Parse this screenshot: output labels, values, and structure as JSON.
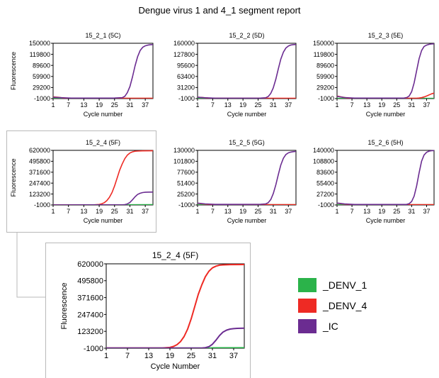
{
  "main_title": "Dengue virus 1 and 4_1 segment report",
  "colors": {
    "DENV_1": "#2bb34a",
    "DENV_4": "#ee2a24",
    "IC": "#6b2c91"
  },
  "legend": [
    {
      "key": "DENV_1",
      "label": "_DENV_1",
      "color": "#2bb34a"
    },
    {
      "key": "DENV_4",
      "label": "_DENV_4",
      "color": "#ee2a24"
    },
    {
      "key": "IC",
      "label": "_IC",
      "color": "#6b2c91"
    }
  ],
  "chart_data": [
    {
      "type": "line",
      "title": "15_2_1 (5C)",
      "xlabel": "Cycle number",
      "ylabel": "Fluorescence",
      "xlim": [
        1,
        40
      ],
      "ylim": [
        -1000,
        150000
      ],
      "x_ticks": [
        "1",
        "7",
        "13",
        "19",
        "25",
        "31",
        "37"
      ],
      "y_ticks": [
        "150000",
        "119800",
        "89600",
        "59900",
        "29200",
        "-1000"
      ],
      "series": [
        {
          "name": "_DENV_1",
          "x": [
            1,
            40
          ],
          "y": [
            -500,
            -500
          ]
        },
        {
          "name": "_DENV_4",
          "x": [
            1,
            3,
            6,
            40
          ],
          "y": [
            3500,
            2500,
            -200,
            -200
          ]
        },
        {
          "name": "_IC",
          "x": [
            1,
            4,
            8,
            25,
            28,
            29,
            30,
            31,
            32,
            33,
            34,
            35,
            36,
            37,
            38,
            39,
            40
          ],
          "y": [
            2500,
            1500,
            300,
            500,
            1500,
            5000,
            15000,
            32000,
            58000,
            88000,
            113000,
            130000,
            139000,
            143000,
            145000,
            146000,
            146500
          ]
        }
      ]
    },
    {
      "type": "line",
      "title": "15_2_2 (5D)",
      "xlabel": "Cycle number",
      "ylabel": "",
      "xlim": [
        1,
        40
      ],
      "ylim": [
        -1000,
        160000
      ],
      "x_ticks": [
        "1",
        "7",
        "13",
        "19",
        "25",
        "31",
        "37"
      ],
      "y_ticks": [
        "160000",
        "127800",
        "95600",
        "63400",
        "31200",
        "-1000"
      ],
      "series": [
        {
          "name": "_DENV_1",
          "x": [
            1,
            40
          ],
          "y": [
            -500,
            -500
          ]
        },
        {
          "name": "_DENV_4",
          "x": [
            1,
            3,
            6,
            40
          ],
          "y": [
            3000,
            2000,
            -200,
            -200
          ]
        },
        {
          "name": "_IC",
          "x": [
            1,
            4,
            8,
            26,
            28,
            29,
            30,
            31,
            32,
            33,
            34,
            35,
            36,
            37,
            38,
            39,
            40
          ],
          "y": [
            3000,
            1500,
            300,
            500,
            1500,
            5000,
            14000,
            30000,
            55000,
            86000,
            114000,
            134000,
            146000,
            152000,
            155000,
            156000,
            156500
          ]
        }
      ]
    },
    {
      "type": "line",
      "title": "15_2_3 (5E)",
      "xlabel": "Cycle number",
      "ylabel": "",
      "xlim": [
        1,
        40
      ],
      "ylim": [
        -1000,
        150000
      ],
      "x_ticks": [
        "1",
        "7",
        "13",
        "19",
        "25",
        "31",
        "37"
      ],
      "y_ticks": [
        "150000",
        "119800",
        "89600",
        "59900",
        "29200",
        "-1000"
      ],
      "series": [
        {
          "name": "_DENV_1",
          "x": [
            1,
            40
          ],
          "y": [
            -500,
            -500
          ]
        },
        {
          "name": "_DENV_4",
          "x": [
            1,
            3,
            6,
            33,
            34,
            35,
            36,
            37,
            38,
            39,
            40
          ],
          "y": [
            6000,
            3000,
            -200,
            -200,
            500,
            1500,
            3500,
            6000,
            9000,
            12000,
            14000
          ]
        },
        {
          "name": "_IC",
          "x": [
            1,
            4,
            8,
            28,
            29,
            30,
            31,
            32,
            33,
            34,
            35,
            36,
            37,
            38,
            39,
            40
          ],
          "y": [
            5000,
            2000,
            300,
            500,
            2000,
            6000,
            18000,
            42000,
            75000,
            108000,
            130000,
            141000,
            145000,
            147000,
            148000,
            148500
          ]
        }
      ]
    },
    {
      "type": "line",
      "title": "15_2_4 (5F)",
      "xlabel": "Cycle number",
      "ylabel": "Fluorescence",
      "xlim": [
        1,
        40
      ],
      "ylim": [
        -1000,
        620000
      ],
      "x_ticks": [
        "1",
        "7",
        "13",
        "19",
        "25",
        "31",
        "37"
      ],
      "y_ticks": [
        "620000",
        "495800",
        "371600",
        "247400",
        "123200",
        "-1000"
      ],
      "series": [
        {
          "name": "_DENV_1",
          "x": [
            1,
            30,
            31,
            40
          ],
          "y": [
            -500,
            -500,
            1500,
            2000
          ]
        },
        {
          "name": "_DENV_4",
          "x": [
            1,
            17,
            19,
            20,
            21,
            22,
            23,
            24,
            25,
            26,
            27,
            28,
            29,
            30,
            31,
            32,
            33,
            34,
            36,
            40
          ],
          "y": [
            0,
            1000,
            5000,
            12000,
            25000,
            48000,
            85000,
            140000,
            215000,
            305000,
            395000,
            465000,
            525000,
            565000,
            590000,
            603000,
            610000,
            612000,
            614000,
            615000
          ]
        },
        {
          "name": "_IC",
          "x": [
            1,
            28,
            29,
            30,
            31,
            32,
            33,
            34,
            35,
            36,
            37,
            38,
            40
          ],
          "y": [
            0,
            500,
            3000,
            10000,
            28000,
            58000,
            92000,
            118000,
            132000,
            140000,
            143000,
            145000,
            146000
          ]
        }
      ]
    },
    {
      "type": "line",
      "title": "15_2_5 (5G)",
      "xlabel": "Cycle number",
      "ylabel": "",
      "xlim": [
        1,
        40
      ],
      "ylim": [
        -1000,
        130000
      ],
      "x_ticks": [
        "1",
        "7",
        "13",
        "19",
        "25",
        "31",
        "37"
      ],
      "y_ticks": [
        "130000",
        "101800",
        "77600",
        "51400",
        "25200",
        "-1000"
      ],
      "series": [
        {
          "name": "_DENV_1",
          "x": [
            1,
            40
          ],
          "y": [
            -500,
            -500
          ]
        },
        {
          "name": "_DENV_4",
          "x": [
            1,
            3,
            6,
            40
          ],
          "y": [
            3000,
            1500,
            -200,
            -200
          ]
        },
        {
          "name": "_IC",
          "x": [
            1,
            4,
            8,
            26,
            28,
            29,
            30,
            31,
            32,
            33,
            34,
            35,
            36,
            37,
            38,
            39,
            40
          ],
          "y": [
            3500,
            1500,
            300,
            500,
            1500,
            4500,
            12000,
            26000,
            47000,
            72000,
            95000,
            111000,
            120000,
            124000,
            126000,
            127000,
            127500
          ]
        }
      ]
    },
    {
      "type": "line",
      "title": "15_2_6 (5H)",
      "xlabel": "Cycle number",
      "ylabel": "",
      "xlim": [
        1,
        40
      ],
      "ylim": [
        -1000,
        140000
      ],
      "x_ticks": [
        "1",
        "7",
        "13",
        "19",
        "25",
        "31",
        "37"
      ],
      "y_ticks": [
        "140000",
        "108800",
        "83600",
        "55400",
        "27200",
        "-1000"
      ],
      "series": [
        {
          "name": "_DENV_1",
          "x": [
            1,
            40
          ],
          "y": [
            -500,
            -500
          ]
        },
        {
          "name": "_DENV_4",
          "x": [
            1,
            3,
            6,
            40
          ],
          "y": [
            3500,
            2000,
            -200,
            -200
          ]
        },
        {
          "name": "_IC",
          "x": [
            1,
            4,
            8,
            29,
            30,
            31,
            32,
            33,
            34,
            35,
            36,
            37,
            38,
            39,
            40
          ],
          "y": [
            4000,
            1500,
            300,
            500,
            2500,
            8000,
            22000,
            48000,
            82000,
            112000,
            128000,
            135000,
            138000,
            139000,
            139500
          ]
        }
      ]
    },
    {
      "type": "line",
      "title": "15_2_4 (5F)",
      "xlabel": "Cycle Number",
      "ylabel": "Fluorescence",
      "xlim": [
        1,
        40
      ],
      "ylim": [
        -1000,
        620000
      ],
      "x_ticks": [
        "1",
        "7",
        "13",
        "19",
        "25",
        "31",
        "37"
      ],
      "y_ticks": [
        "620000",
        "495800",
        "371600",
        "247400",
        "123200",
        "-1000"
      ],
      "series": [
        {
          "name": "_DENV_1",
          "x": [
            1,
            30,
            31,
            40
          ],
          "y": [
            -500,
            -500,
            1500,
            2000
          ]
        },
        {
          "name": "_DENV_4",
          "x": [
            1,
            17,
            19,
            20,
            21,
            22,
            23,
            24,
            25,
            26,
            27,
            28,
            29,
            30,
            31,
            32,
            33,
            34,
            36,
            40
          ],
          "y": [
            0,
            1000,
            5000,
            12000,
            25000,
            48000,
            85000,
            140000,
            215000,
            305000,
            395000,
            465000,
            525000,
            565000,
            590000,
            603000,
            610000,
            612000,
            614000,
            615000
          ]
        },
        {
          "name": "_IC",
          "x": [
            1,
            28,
            29,
            30,
            31,
            32,
            33,
            34,
            35,
            36,
            37,
            38,
            40
          ],
          "y": [
            0,
            500,
            3000,
            10000,
            28000,
            58000,
            92000,
            118000,
            132000,
            140000,
            143000,
            145000,
            146000
          ]
        }
      ]
    }
  ]
}
